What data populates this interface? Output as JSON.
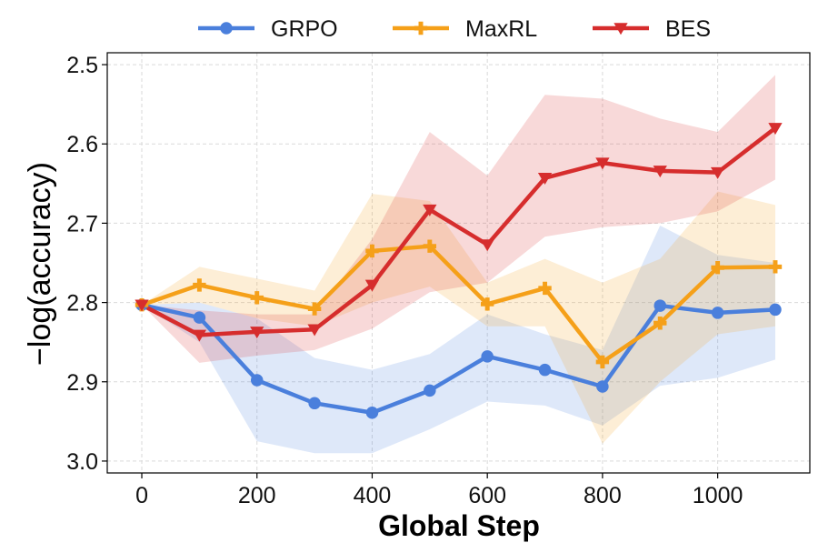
{
  "chart_data": {
    "type": "line",
    "xlabel": "Global Step",
    "ylabel": "−log(accuracy)",
    "xlim": [
      -60,
      1160
    ],
    "ylim": [
      3.015,
      2.485
    ],
    "y_inverted": true,
    "xticks": [
      0,
      200,
      400,
      600,
      800,
      1000
    ],
    "yticks": [
      2.5,
      2.6,
      2.7,
      2.8,
      2.9,
      3.0
    ],
    "xtick_labels": [
      "0",
      "200",
      "400",
      "600",
      "800",
      "1000"
    ],
    "ytick_labels": [
      "2.5",
      "2.6",
      "2.7",
      "2.8",
      "2.9",
      "3.0"
    ],
    "grid": true,
    "legend_position": "top-center",
    "x": [
      0,
      100,
      200,
      300,
      400,
      500,
      600,
      700,
      800,
      900,
      1000,
      1100
    ],
    "series": [
      {
        "name": "GRPO",
        "color": "#4a7fdc",
        "marker": "circle",
        "values": [
          2.803,
          2.819,
          2.898,
          2.927,
          2.939,
          2.911,
          2.868,
          2.885,
          2.906,
          2.804,
          2.813,
          2.809
        ],
        "band_low": [
          2.803,
          2.85,
          2.975,
          2.99,
          2.99,
          2.96,
          2.925,
          2.93,
          2.955,
          2.905,
          2.895,
          2.872
        ],
        "band_high": [
          2.803,
          2.8,
          2.82,
          2.87,
          2.885,
          2.865,
          2.815,
          2.84,
          2.86,
          2.703,
          2.74,
          2.75
        ]
      },
      {
        "name": "MaxRL",
        "color": "#f5a019",
        "marker": "plus",
        "values": [
          2.803,
          2.778,
          2.794,
          2.808,
          2.735,
          2.729,
          2.802,
          2.782,
          2.875,
          2.826,
          2.756,
          2.755
        ],
        "band_low": [
          2.803,
          2.8,
          2.82,
          2.83,
          2.8,
          2.78,
          2.83,
          2.83,
          2.978,
          2.9,
          2.84,
          2.83
        ],
        "band_high": [
          2.803,
          2.755,
          2.77,
          2.785,
          2.663,
          2.672,
          2.775,
          2.745,
          2.775,
          2.745,
          2.66,
          2.677
        ]
      },
      {
        "name": "BES",
        "color": "#d62d2d",
        "marker": "triangle-down",
        "values": [
          2.803,
          2.841,
          2.837,
          2.834,
          2.778,
          2.683,
          2.727,
          2.643,
          2.624,
          2.634,
          2.636,
          2.58
        ],
        "band_low": [
          2.803,
          2.876,
          2.867,
          2.86,
          2.833,
          2.787,
          2.775,
          2.717,
          2.705,
          2.7,
          2.685,
          2.645
        ],
        "band_high": [
          2.803,
          2.81,
          2.815,
          2.815,
          2.72,
          2.585,
          2.64,
          2.538,
          2.543,
          2.568,
          2.585,
          2.513
        ]
      }
    ]
  }
}
